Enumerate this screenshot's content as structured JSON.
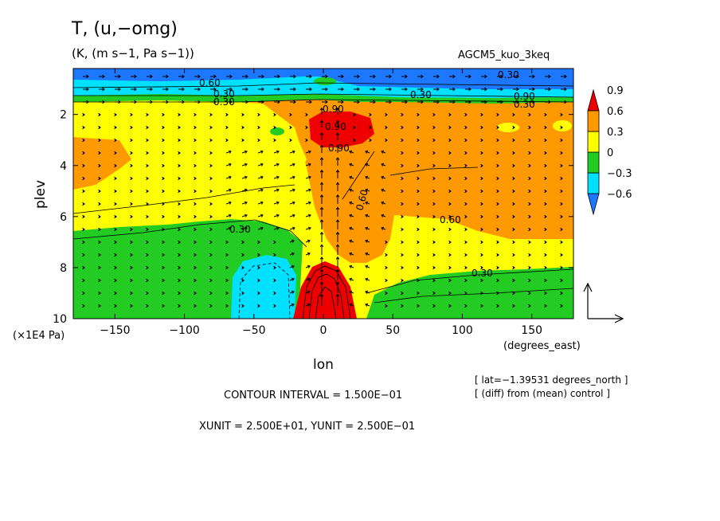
{
  "chart_data": {
    "type": "heatmap",
    "title": "T, (u,−omg)",
    "subtitle": "(K, (m s−1, Pa s−1))",
    "model_label": "AGCM5_kuo_3keq",
    "xlabel": "lon",
    "ylabel": "plev",
    "x_units_label": "(degrees_east)",
    "y_units_label": "(×1E4 Pa)",
    "xlim": [
      -180,
      180
    ],
    "ylim": [
      10,
      0.2
    ],
    "x_ticks": [
      -150,
      -100,
      -50,
      0,
      50,
      100,
      150
    ],
    "x_tick_labels": [
      "−150",
      "−100",
      "−50",
      "0",
      "50",
      "100",
      "150"
    ],
    "y_ticks": [
      2,
      4,
      6,
      8,
      10
    ],
    "y_tick_labels": [
      "2",
      "4",
      "6",
      "8",
      "10"
    ],
    "colorbar": {
      "levels": [
        -0.6,
        -0.3,
        0,
        0.3,
        0.6,
        0.9
      ],
      "labels": [
        "−0.6",
        "−0.3",
        "0",
        "0.3",
        "0.6",
        "0.9"
      ],
      "colors": [
        "#1e78ff",
        "#00e0ff",
        "#22cc22",
        "#ffff00",
        "#ff9900",
        "#ee0000"
      ]
    },
    "contour_labels": [
      "0.90",
      "0.60",
      "0.30",
      "0.30",
      "0.90",
      "0.30",
      "0.90",
      "0.60",
      "0.30",
      "0.30",
      "0.90",
      "0.30",
      "0.60"
    ],
    "info_lines": [
      "[ lat=−1.39531 degrees_north ]",
      "[ (diff) from (mean) control ]"
    ],
    "contour_interval": "CONTOUR INTERVAL = 1.500E−01",
    "unit_vectors": "XUNIT = 2.500E+01, YUNIT = 2.500E−01",
    "colors": {
      "deep_blue": "#1e78ff",
      "cyan": "#00e0ff",
      "green": "#22cc22",
      "yellow": "#ffff00",
      "orange": "#ff9900",
      "red": "#ee0000"
    }
  }
}
